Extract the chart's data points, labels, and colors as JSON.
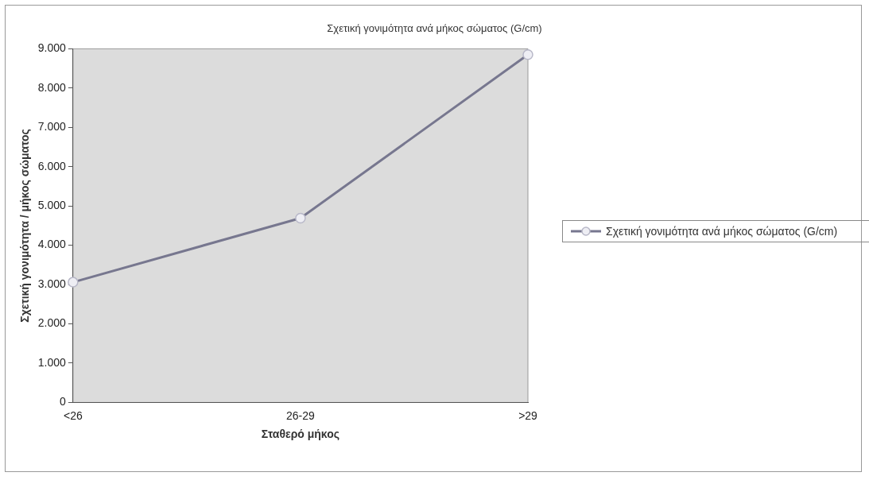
{
  "chart_data": {
    "type": "line",
    "title": "Σχετική γονιμότητα ανά μήκος σώματος (G/cm)",
    "xlabel": "Σταθερό μήκος",
    "ylabel": "Σχετική γονιμότητα / μήκος σώματος",
    "categories": [
      "<26",
      "26-29",
      ">29"
    ],
    "series": [
      {
        "name": "Σχετική γονιμότητα ανά μήκος σώματος (G/cm)",
        "color": "#77778f",
        "values": [
          3060,
          4690,
          8850
        ]
      }
    ],
    "ylim": [
      0,
      9000
    ],
    "yticks": [
      0,
      {
        "value": 1000,
        "label": "1.000"
      },
      {
        "value": 2000,
        "label": "2.000"
      },
      {
        "value": 3000,
        "label": "3.000"
      },
      {
        "value": 4000,
        "label": "4.000"
      },
      {
        "value": 5000,
        "label": "5.000"
      },
      {
        "value": 6000,
        "label": "6.000"
      },
      {
        "value": 7000,
        "label": "7.000"
      },
      {
        "value": 8000,
        "label": "8.000"
      },
      {
        "value": 9000,
        "label": "9.000"
      }
    ],
    "grid": false,
    "legend": "right",
    "marker": "circle",
    "line_style": "solid"
  }
}
